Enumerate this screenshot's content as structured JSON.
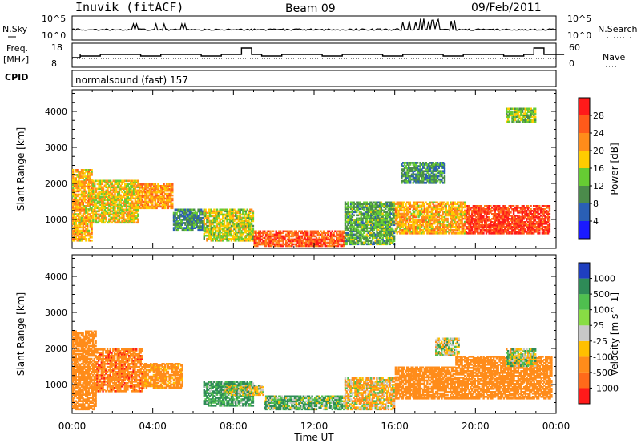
{
  "header": {
    "title_left": "Inuvik (fitACF)",
    "title_center": "Beam 09",
    "title_right": "09/Feb/2011"
  },
  "panel_nsky": {
    "label_left": "N.Sky",
    "label_right": "N.Search",
    "ticks_left": [
      "10^5",
      "10^0"
    ],
    "ticks_right": [
      "10^5",
      "10^0"
    ]
  },
  "panel_freq": {
    "label_left_1": "Freq.",
    "label_left_2": "[MHz]",
    "label_right": "Nave",
    "ticks_left": [
      "18",
      "8"
    ],
    "ticks_right": [
      "60",
      "0"
    ]
  },
  "cpid": {
    "label": "CPID",
    "mode": "normalsound (fast) 157"
  },
  "colors": {
    "red": "#ff1a1a",
    "orange": "#ff7f00",
    "yellow": "#ffc000",
    "green": "#33bb33",
    "darkgreen": "#2e8b57",
    "blue": "#1f3fbf",
    "grey": "#c8c8c8"
  },
  "chart_data": [
    {
      "type": "heatmap",
      "title": "",
      "xlabel": "",
      "ylabel": "Slant Range [km]",
      "x_tick_labels": [
        "00:00",
        "04:00",
        "08:00",
        "12:00",
        "16:00",
        "20:00",
        "00:00"
      ],
      "y_tick_labels": [
        "1000",
        "2000",
        "3000",
        "4000"
      ],
      "ylim": [
        200,
        4600
      ],
      "colorbar": {
        "label": "Power [dB]",
        "ticks": [
          "4",
          "8",
          "12",
          "16",
          "20",
          "24",
          "28"
        ],
        "colors": [
          "#1a1aff",
          "#2a5fb5",
          "#4b8b4b",
          "#66cc33",
          "#ffcc00",
          "#ff8c1a",
          "#ff5a1a",
          "#ff1a1a"
        ]
      },
      "regions": [
        {
          "t0": 0.0,
          "t1": 1.0,
          "r0": 400,
          "r1": 2400,
          "v": 20
        },
        {
          "t0": 1.0,
          "t1": 3.3,
          "r0": 900,
          "r1": 2100,
          "v": 18
        },
        {
          "t0": 3.3,
          "t1": 5.0,
          "r0": 1300,
          "r1": 2000,
          "v": 22
        },
        {
          "t0": 5.0,
          "t1": 6.5,
          "r0": 700,
          "r1": 1300,
          "v": 10
        },
        {
          "t0": 6.5,
          "t1": 9.0,
          "r0": 400,
          "r1": 1300,
          "v": 16
        },
        {
          "t0": 9.0,
          "t1": 13.5,
          "r0": 250,
          "r1": 700,
          "v": 26
        },
        {
          "t0": 13.5,
          "t1": 16.0,
          "r0": 300,
          "r1": 1500,
          "v": 12
        },
        {
          "t0": 16.0,
          "t1": 19.5,
          "r0": 600,
          "r1": 1500,
          "v": 20
        },
        {
          "t0": 19.5,
          "t1": 23.7,
          "r0": 600,
          "r1": 1400,
          "v": 28
        },
        {
          "t0": 16.3,
          "t1": 18.5,
          "r0": 2000,
          "r1": 2600,
          "v": 10
        },
        {
          "t0": 21.5,
          "t1": 23.0,
          "r0": 3700,
          "r1": 4100,
          "v": 14
        }
      ]
    },
    {
      "type": "heatmap",
      "title": "",
      "xlabel": "Time UT",
      "ylabel": "Slant Range [km]",
      "x_tick_labels": [
        "00:00",
        "04:00",
        "08:00",
        "12:00",
        "16:00",
        "20:00",
        "00:00"
      ],
      "y_tick_labels": [
        "1000",
        "2000",
        "3000",
        "4000"
      ],
      "ylim": [
        200,
        4600
      ],
      "colorbar": {
        "label": "Velocity [m s^-1]",
        "ticks": [
          "1000",
          "500",
          "100",
          "25",
          "-25",
          "-100",
          "-500",
          "-1000"
        ],
        "colors": [
          "#1f3fbf",
          "#2e8b57",
          "#4fbf4f",
          "#88dd44",
          "#c8c8c8",
          "#ffc000",
          "#ff8c1a",
          "#ff6a1a",
          "#ff1a1a"
        ]
      },
      "regions": [
        {
          "t0": 0.0,
          "t1": 1.2,
          "r0": 300,
          "r1": 2500,
          "v": -300
        },
        {
          "t0": 1.2,
          "t1": 3.5,
          "r0": 800,
          "r1": 2000,
          "v": -400
        },
        {
          "t0": 3.5,
          "t1": 5.5,
          "r0": 900,
          "r1": 1600,
          "v": -200
        },
        {
          "t0": 6.5,
          "t1": 9.0,
          "r0": 400,
          "r1": 1100,
          "v": 150
        },
        {
          "t0": 7.5,
          "t1": 9.5,
          "r0": 700,
          "r1": 1000,
          "v": 0
        },
        {
          "t0": 9.5,
          "t1": 13.5,
          "r0": 300,
          "r1": 700,
          "v": 80
        },
        {
          "t0": 13.5,
          "t1": 16.0,
          "r0": 300,
          "r1": 1200,
          "v": -80
        },
        {
          "t0": 16.0,
          "t1": 19.0,
          "r0": 600,
          "r1": 1500,
          "v": -250
        },
        {
          "t0": 19.0,
          "t1": 23.8,
          "r0": 600,
          "r1": 1800,
          "v": -350
        },
        {
          "t0": 18.0,
          "t1": 19.2,
          "r0": 1800,
          "r1": 2300,
          "v": 0
        },
        {
          "t0": 21.5,
          "t1": 23.0,
          "r0": 1500,
          "r1": 2000,
          "v": 20
        }
      ]
    }
  ]
}
